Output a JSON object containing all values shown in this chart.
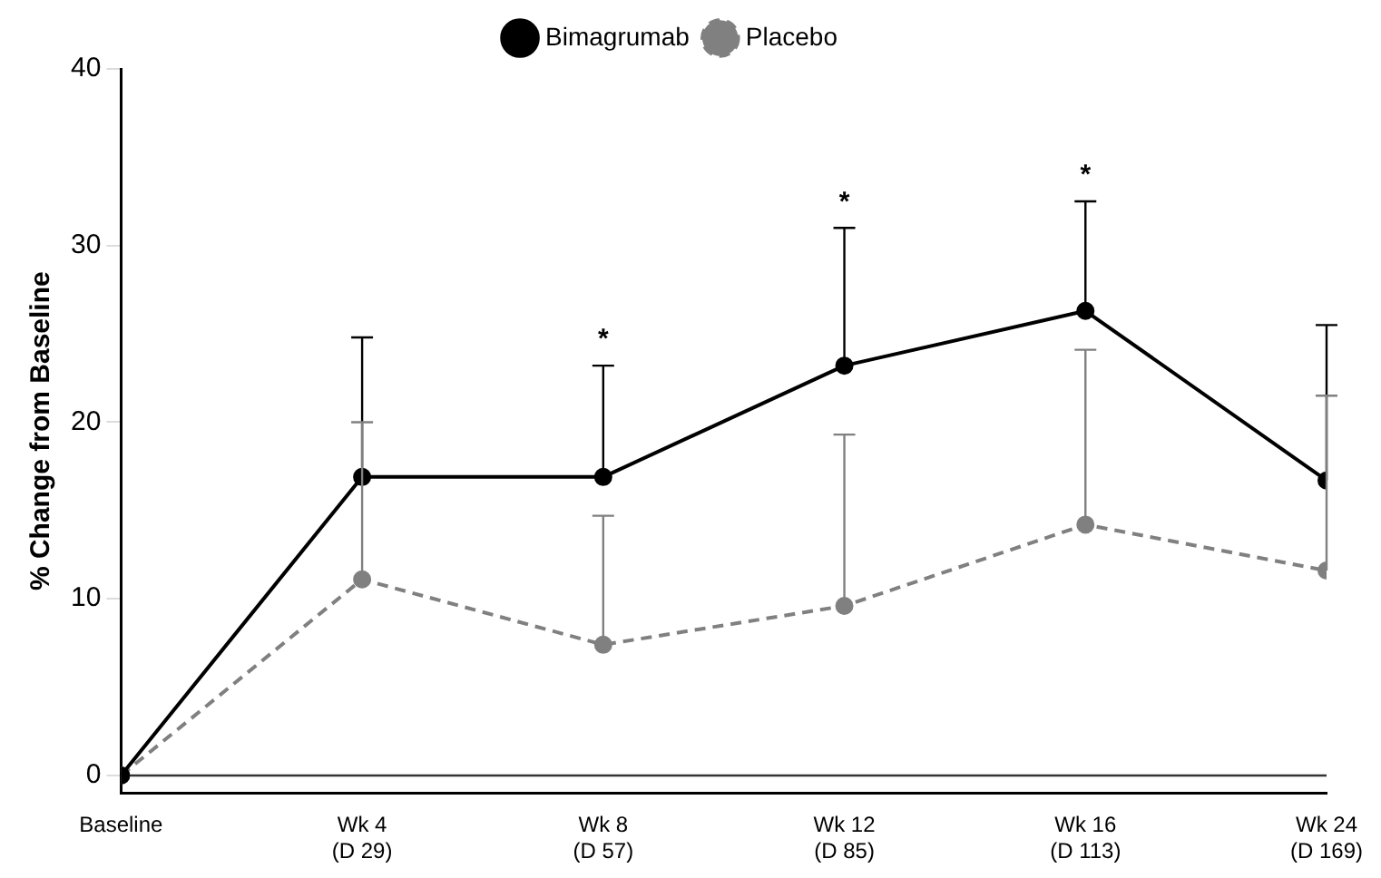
{
  "chart_data": {
    "type": "line",
    "ylabel": "% Change from Baseline",
    "categories": [
      "Baseline",
      "Wk 4\n(D 29)",
      "Wk 8\n(D 57)",
      "Wk 12\n(D 85)",
      "Wk 16\n(D 113)",
      "Wk 24\n(D 169)"
    ],
    "ylim": [
      -1,
      40
    ],
    "yticks": [
      0,
      10,
      20,
      30,
      40
    ],
    "series": [
      {
        "name": "Bimagrumab",
        "color": "#000000",
        "line_style": "solid",
        "values": [
          0,
          16.9,
          16.9,
          23.2,
          26.3,
          16.7
        ],
        "errors": [
          null,
          [
            16.9,
            24.8
          ],
          [
            16.9,
            23.2
          ],
          [
            23.2,
            31.0
          ],
          [
            26.3,
            32.5
          ],
          [
            16.7,
            25.5
          ]
        ]
      },
      {
        "name": "Placebo",
        "color": "#808080",
        "line_style": "dashed",
        "values": [
          0,
          11.1,
          7.4,
          9.6,
          14.2,
          11.6
        ],
        "errors": [
          null,
          [
            11.1,
            20.0
          ],
          [
            7.4,
            14.7
          ],
          [
            9.6,
            19.3
          ],
          [
            14.2,
            24.1
          ],
          [
            11.6,
            21.5
          ]
        ]
      }
    ],
    "ref_lines": [
      {
        "axis": "y",
        "value": 0,
        "color": "#333333"
      }
    ],
    "annotations": [
      {
        "text": "*",
        "x": "Wk 8\n(D 57)",
        "y": 23.2
      },
      {
        "text": "*",
        "x": "Wk 12\n(D 85)",
        "y": 31.0
      },
      {
        "text": "*",
        "x": "Wk 16\n(D 113)",
        "y": 32.5
      }
    ],
    "marker": "circle",
    "grid": false,
    "legend": "top"
  }
}
